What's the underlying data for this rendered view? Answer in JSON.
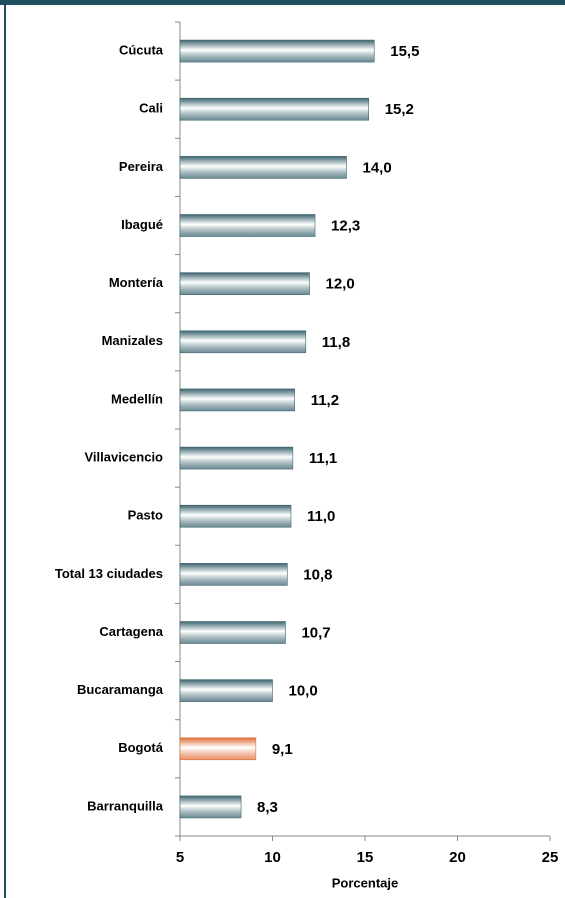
{
  "chart_data": {
    "type": "bar",
    "orientation": "horizontal",
    "categories": [
      "Cúcuta",
      "Cali",
      "Pereira",
      "Ibagué",
      "Montería",
      "Manizales",
      "Medellín",
      "Villavicencio",
      "Pasto",
      "Total 13 ciudades",
      "Cartagena",
      "Bucaramanga",
      "Bogotá",
      "Barranquilla"
    ],
    "values": [
      15.5,
      15.2,
      14.0,
      12.3,
      12.0,
      11.8,
      11.2,
      11.1,
      11.0,
      10.8,
      10.7,
      10.0,
      9.1,
      8.3
    ],
    "value_labels": [
      "15,5",
      "15,2",
      "14,0",
      "12,3",
      "12,0",
      "11,8",
      "11,2",
      "11,1",
      "11,0",
      "10,8",
      "10,7",
      "10,0",
      "9,1",
      "8,3"
    ],
    "colors": [
      "#3d6570",
      "#3d6570",
      "#3d6570",
      "#3d6570",
      "#3d6570",
      "#3d6570",
      "#3d6570",
      "#3d6570",
      "#3d6570",
      "#3d6570",
      "#3d6570",
      "#3d6570",
      "#e0703a",
      "#3d6570"
    ],
    "xlim": [
      5,
      25
    ],
    "xticks": [
      5,
      10,
      15,
      20,
      25
    ],
    "xlabel": "Porcentaje"
  }
}
